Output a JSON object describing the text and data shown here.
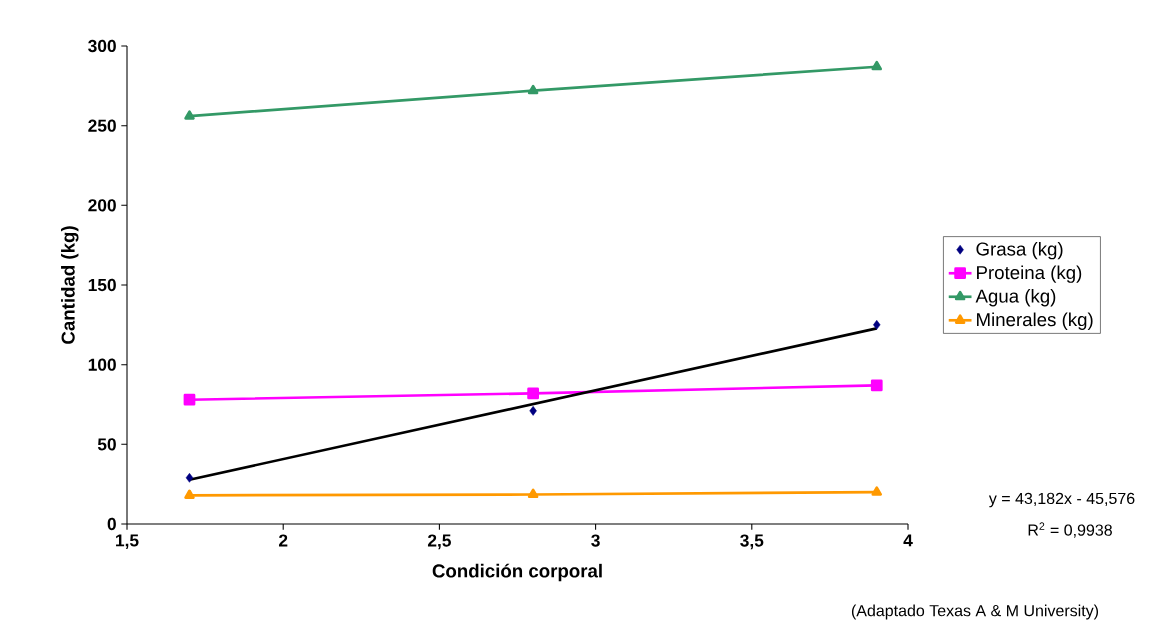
{
  "chart_data": {
    "type": "line",
    "xlabel": "Condición corporal",
    "ylabel": "Cantidad (kg)",
    "xlim": [
      1.5,
      4
    ],
    "ylim": [
      0,
      300
    ],
    "xticks": [
      {
        "value": 1.5,
        "label": "1,5"
      },
      2,
      {
        "value": 2.5,
        "label": "2,5"
      },
      3,
      {
        "value": 3.5,
        "label": "3,5"
      },
      4
    ],
    "yticks": [
      0,
      50,
      100,
      150,
      200,
      250,
      300
    ],
    "legend": "right",
    "grid": false,
    "line_style": "solid",
    "series": [
      {
        "name": "Grasa (kg)",
        "type": "scatter",
        "marker": "diamond",
        "color": "#000080",
        "x": [
          1.7,
          2.8,
          3.9
        ],
        "values": [
          29,
          71,
          125
        ]
      },
      {
        "name": "Proteina (kg)",
        "marker": "square",
        "color": "#ff00ff",
        "x": [
          1.7,
          2.8,
          3.9
        ],
        "values": [
          78,
          82,
          87
        ]
      },
      {
        "name": "Agua (kg)",
        "marker": "triangle",
        "color": "#339966",
        "x": [
          1.7,
          2.8,
          3.9
        ],
        "values": [
          256,
          272,
          287
        ]
      },
      {
        "name": "Minerales (kg)",
        "marker": "triangle",
        "color": "#ff9900",
        "x": [
          1.7,
          2.8,
          3.9
        ],
        "values": [
          18,
          18.5,
          20
        ]
      },
      {
        "marker": "none",
        "color": "#000000",
        "x": [
          1.7,
          3.9
        ],
        "values": [
          27.8,
          122.8
        ]
      }
    ],
    "annotations": [
      "y = 43,182x - 45,576",
      "R$^{2}$ = 0,9938",
      "(Adaptado Texas A & M University)"
    ]
  }
}
